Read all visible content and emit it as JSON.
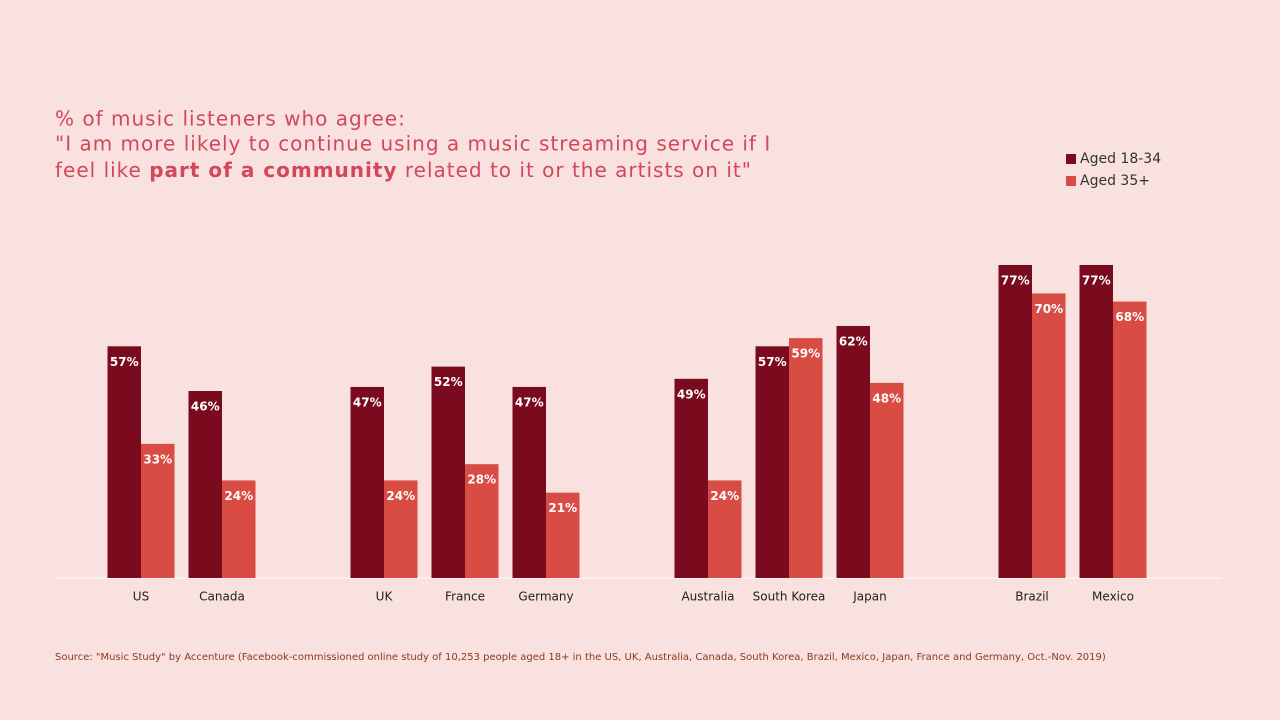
{
  "chart_data": {
    "type": "bar",
    "title": "% of music listeners who agree:",
    "subtitle_parts": [
      "\"I am more likely to continue using a music streaming service if I",
      "feel like ",
      "part of a community",
      " related to it or the artists on it\""
    ],
    "categories": [
      "US",
      "Canada",
      "UK",
      "France",
      "Germany",
      "Australia",
      "South Korea",
      "Japan",
      "Brazil",
      "Mexico"
    ],
    "series": [
      {
        "name": "Aged 18-34",
        "color": "#7a0b1f",
        "values": [
          57,
          46,
          47,
          52,
          47,
          49,
          57,
          62,
          77,
          77
        ],
        "value_labels": [
          "57%",
          "46%",
          "47%",
          "52%",
          "47%",
          "49%",
          "57%",
          "62%",
          "77%",
          "77%"
        ]
      },
      {
        "name": "Aged 35+",
        "color": "#d94c44",
        "values": [
          33,
          24,
          24,
          28,
          21,
          24,
          59,
          48,
          70,
          68
        ],
        "value_labels": [
          "33%",
          "24%",
          "24%",
          "28%",
          "21%",
          "24%",
          "59%",
          "48%",
          "70%",
          "68%"
        ]
      }
    ],
    "legend": "top-right",
    "source": "Source: \"Music Study\" by Accenture (Facebook-commissioned online study of 10,253 people aged 18+ in the US, UK, Australia, Canada, South Korea, Brazil, Mexico, Japan, France and Germany, Oct.-Nov. 2019)"
  }
}
